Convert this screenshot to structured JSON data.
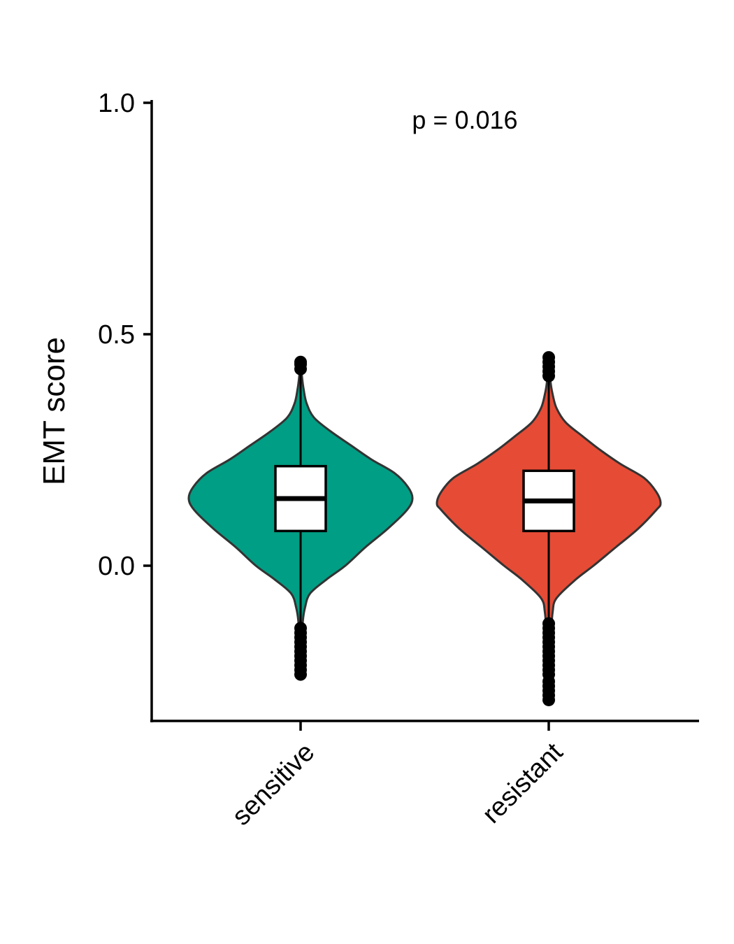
{
  "chart_data": {
    "type": "violin",
    "categories": [
      "sensitive",
      "resistant"
    ],
    "ylabel": "EMT score",
    "xlabel": "",
    "ylim": [
      -0.34,
      1.0
    ],
    "yticks": [
      {
        "value": 0.0,
        "label": "0.0"
      },
      {
        "value": 0.5,
        "label": "0.5"
      },
      {
        "value": 1.0,
        "label": "1.0"
      }
    ],
    "annotation": "p = 0.016",
    "grid": false,
    "legend": "none",
    "groups": [
      {
        "name": "sensitive",
        "color": "#009E84",
        "min_violin": -0.235,
        "max_violin": 0.445,
        "q1": 0.075,
        "median": 0.145,
        "q3": 0.215,
        "whisker_low": -0.13,
        "whisker_high": 0.42,
        "outliers": [
          -0.135,
          -0.145,
          -0.155,
          -0.165,
          -0.175,
          -0.185,
          -0.195,
          -0.205,
          -0.215,
          -0.225,
          -0.235,
          0.425,
          0.435,
          0.44
        ],
        "density": [
          [
            -0.235,
            0.004
          ],
          [
            -0.2,
            0.008
          ],
          [
            -0.16,
            0.012
          ],
          [
            -0.12,
            0.02
          ],
          [
            -0.09,
            0.04
          ],
          [
            -0.06,
            0.085
          ],
          [
            -0.03,
            0.23
          ],
          [
            0.0,
            0.4
          ],
          [
            0.04,
            0.58
          ],
          [
            0.08,
            0.78
          ],
          [
            0.12,
            0.95
          ],
          [
            0.145,
            1.0
          ],
          [
            0.17,
            0.96
          ],
          [
            0.2,
            0.84
          ],
          [
            0.23,
            0.63
          ],
          [
            0.26,
            0.45
          ],
          [
            0.29,
            0.27
          ],
          [
            0.32,
            0.12
          ],
          [
            0.35,
            0.055
          ],
          [
            0.38,
            0.028
          ],
          [
            0.41,
            0.012
          ],
          [
            0.445,
            0.004
          ]
        ]
      },
      {
        "name": "resistant",
        "color": "#E64B35",
        "min_violin": -0.29,
        "max_violin": 0.45,
        "q1": 0.075,
        "median": 0.14,
        "q3": 0.205,
        "whisker_low": -0.12,
        "whisker_high": 0.405,
        "outliers": [
          -0.125,
          -0.135,
          -0.145,
          -0.155,
          -0.165,
          -0.175,
          -0.185,
          -0.195,
          -0.205,
          -0.215,
          -0.225,
          -0.235,
          -0.25,
          -0.26,
          -0.27,
          -0.28,
          -0.29,
          0.41,
          0.42,
          0.43,
          0.44,
          0.45
        ],
        "density": [
          [
            -0.29,
            0.004
          ],
          [
            -0.25,
            0.008
          ],
          [
            -0.2,
            0.012
          ],
          [
            -0.15,
            0.02
          ],
          [
            -0.1,
            0.035
          ],
          [
            -0.07,
            0.07
          ],
          [
            -0.03,
            0.24
          ],
          [
            0.0,
            0.4
          ],
          [
            0.04,
            0.6
          ],
          [
            0.08,
            0.8
          ],
          [
            0.12,
            0.96
          ],
          [
            0.135,
            1.0
          ],
          [
            0.16,
            0.96
          ],
          [
            0.19,
            0.85
          ],
          [
            0.22,
            0.64
          ],
          [
            0.25,
            0.46
          ],
          [
            0.28,
            0.3
          ],
          [
            0.31,
            0.15
          ],
          [
            0.34,
            0.07
          ],
          [
            0.37,
            0.035
          ],
          [
            0.4,
            0.015
          ],
          [
            0.45,
            0.004
          ]
        ]
      }
    ]
  }
}
